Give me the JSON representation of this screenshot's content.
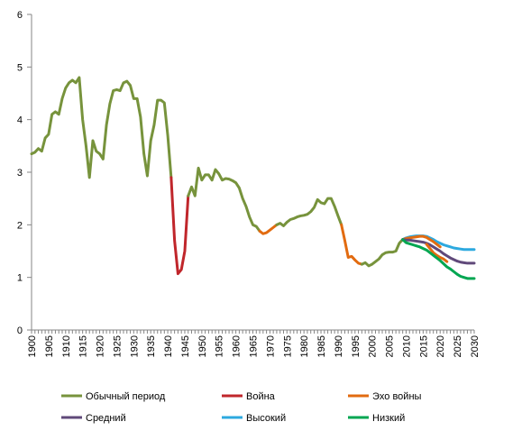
{
  "chart_data": {
    "type": "line",
    "title": "",
    "xlabel": "",
    "ylabel": "",
    "xlim": [
      1900,
      2030
    ],
    "ylim": [
      0,
      6
    ],
    "grid": false,
    "legend_position": "bottom",
    "y_ticks": [
      0,
      1,
      2,
      3,
      4,
      5,
      6
    ],
    "x_ticks": [
      1900,
      1905,
      1910,
      1915,
      1920,
      1925,
      1930,
      1935,
      1940,
      1945,
      1950,
      1955,
      1960,
      1965,
      1970,
      1975,
      1980,
      1985,
      1990,
      1995,
      2000,
      2005,
      2010,
      2015,
      2020,
      2025,
      2030
    ],
    "series": [
      {
        "name": "Обычный период",
        "color": "#77933c",
        "points": [
          [
            1900,
            3.35
          ],
          [
            1901,
            3.38
          ],
          [
            1902,
            3.45
          ],
          [
            1903,
            3.4
          ],
          [
            1904,
            3.65
          ],
          [
            1905,
            3.72
          ],
          [
            1906,
            4.1
          ],
          [
            1907,
            4.15
          ],
          [
            1908,
            4.1
          ],
          [
            1909,
            4.4
          ],
          [
            1910,
            4.6
          ],
          [
            1911,
            4.7
          ],
          [
            1912,
            4.75
          ],
          [
            1913,
            4.7
          ],
          [
            1914,
            4.8
          ],
          [
            1915,
            4.0
          ],
          [
            1916,
            3.5
          ],
          [
            1917,
            2.9
          ],
          [
            1918,
            3.6
          ],
          [
            1919,
            3.4
          ],
          [
            1920,
            3.35
          ],
          [
            1921,
            3.25
          ],
          [
            1922,
            3.9
          ],
          [
            1923,
            4.3
          ],
          [
            1924,
            4.55
          ],
          [
            1925,
            4.57
          ],
          [
            1926,
            4.55
          ],
          [
            1927,
            4.7
          ],
          [
            1928,
            4.73
          ],
          [
            1929,
            4.65
          ],
          [
            1930,
            4.4
          ],
          [
            1931,
            4.4
          ],
          [
            1932,
            4.05
          ],
          [
            1933,
            3.35
          ],
          [
            1934,
            2.93
          ],
          [
            1935,
            3.6
          ],
          [
            1936,
            3.9
          ],
          [
            1937,
            4.37
          ],
          [
            1938,
            4.37
          ],
          [
            1939,
            4.32
          ],
          [
            1940,
            3.7
          ],
          [
            1941,
            2.9
          ]
        ]
      },
      {
        "name": "Война",
        "color": "#c0262b",
        "points": [
          [
            1941,
            2.9
          ],
          [
            1942,
            1.7
          ],
          [
            1943,
            1.07
          ],
          [
            1944,
            1.15
          ],
          [
            1945,
            1.5
          ],
          [
            1946,
            2.55
          ]
        ]
      },
      {
        "name": "Обычный период",
        "color": "#77933c",
        "points": [
          [
            1946,
            2.55
          ],
          [
            1947,
            2.72
          ],
          [
            1948,
            2.55
          ],
          [
            1949,
            3.08
          ],
          [
            1950,
            2.85
          ],
          [
            1951,
            2.95
          ],
          [
            1952,
            2.95
          ],
          [
            1953,
            2.85
          ],
          [
            1954,
            3.05
          ],
          [
            1955,
            2.97
          ],
          [
            1956,
            2.85
          ],
          [
            1957,
            2.88
          ],
          [
            1958,
            2.87
          ],
          [
            1959,
            2.84
          ],
          [
            1960,
            2.8
          ],
          [
            1961,
            2.7
          ],
          [
            1962,
            2.5
          ],
          [
            1963,
            2.35
          ],
          [
            1964,
            2.15
          ],
          [
            1965,
            2.0
          ],
          [
            1966,
            1.97
          ],
          [
            1967,
            1.88
          ]
        ]
      },
      {
        "name": "Эхо войны",
        "color": "#e26b10",
        "points": [
          [
            1967,
            1.88
          ],
          [
            1968,
            1.83
          ],
          [
            1969,
            1.85
          ],
          [
            1970,
            1.9
          ],
          [
            1971,
            1.95
          ],
          [
            1972,
            2.0
          ]
        ]
      },
      {
        "name": "Обычный период",
        "color": "#77933c",
        "points": [
          [
            1972,
            2.0
          ],
          [
            1973,
            2.03
          ],
          [
            1974,
            1.98
          ],
          [
            1975,
            2.05
          ],
          [
            1976,
            2.1
          ],
          [
            1977,
            2.12
          ],
          [
            1978,
            2.15
          ],
          [
            1979,
            2.17
          ],
          [
            1980,
            2.18
          ],
          [
            1981,
            2.2
          ],
          [
            1982,
            2.25
          ],
          [
            1983,
            2.33
          ],
          [
            1984,
            2.48
          ],
          [
            1985,
            2.42
          ],
          [
            1986,
            2.4
          ],
          [
            1987,
            2.5
          ],
          [
            1988,
            2.5
          ],
          [
            1989,
            2.35
          ],
          [
            1990,
            2.17
          ],
          [
            1991,
            2.0
          ]
        ]
      },
      {
        "name": "Эхо войны",
        "color": "#e26b10",
        "points": [
          [
            1991,
            2.0
          ],
          [
            1992,
            1.7
          ],
          [
            1993,
            1.38
          ],
          [
            1994,
            1.4
          ],
          [
            1995,
            1.33
          ],
          [
            1996,
            1.27
          ],
          [
            1997,
            1.25
          ]
        ]
      },
      {
        "name": "Обычный период",
        "color": "#77933c",
        "points": [
          [
            1997,
            1.25
          ],
          [
            1998,
            1.28
          ],
          [
            1999,
            1.22
          ],
          [
            2000,
            1.25
          ],
          [
            2001,
            1.3
          ],
          [
            2002,
            1.35
          ],
          [
            2003,
            1.43
          ],
          [
            2004,
            1.47
          ],
          [
            2005,
            1.48
          ],
          [
            2006,
            1.48
          ],
          [
            2007,
            1.5
          ],
          [
            2008,
            1.65
          ],
          [
            2009,
            1.72
          ]
        ]
      },
      {
        "name": "Высокий",
        "color": "#2da9df",
        "points": [
          [
            2009,
            1.72
          ],
          [
            2010,
            1.75
          ],
          [
            2011,
            1.77
          ],
          [
            2012,
            1.78
          ],
          [
            2013,
            1.79
          ],
          [
            2014,
            1.79
          ],
          [
            2015,
            1.79
          ],
          [
            2016,
            1.78
          ],
          [
            2017,
            1.75
          ],
          [
            2018,
            1.72
          ],
          [
            2019,
            1.68
          ],
          [
            2020,
            1.65
          ],
          [
            2021,
            1.62
          ],
          [
            2022,
            1.6
          ],
          [
            2023,
            1.58
          ],
          [
            2024,
            1.56
          ],
          [
            2025,
            1.55
          ],
          [
            2026,
            1.54
          ],
          [
            2027,
            1.53
          ],
          [
            2028,
            1.53
          ],
          [
            2029,
            1.53
          ],
          [
            2030,
            1.53
          ]
        ]
      },
      {
        "name": "Эхо войны",
        "color": "#e26b10",
        "points": [
          [
            2009,
            1.72
          ],
          [
            2010,
            1.74
          ],
          [
            2011,
            1.75
          ],
          [
            2012,
            1.76
          ],
          [
            2013,
            1.77
          ],
          [
            2014,
            1.78
          ],
          [
            2015,
            1.78
          ],
          [
            2016,
            1.76
          ],
          [
            2017,
            1.72
          ],
          [
            2018,
            1.68
          ],
          [
            2019,
            1.63
          ],
          [
            2020,
            1.58
          ]
        ]
      },
      {
        "name": "Средний",
        "color": "#60497a",
        "points": [
          [
            2009,
            1.72
          ],
          [
            2010,
            1.71
          ],
          [
            2011,
            1.71
          ],
          [
            2012,
            1.7
          ],
          [
            2013,
            1.69
          ],
          [
            2014,
            1.68
          ],
          [
            2015,
            1.67
          ],
          [
            2016,
            1.65
          ],
          [
            2017,
            1.62
          ],
          [
            2018,
            1.58
          ],
          [
            2019,
            1.54
          ],
          [
            2020,
            1.5
          ],
          [
            2021,
            1.45
          ],
          [
            2022,
            1.41
          ],
          [
            2023,
            1.37
          ],
          [
            2024,
            1.34
          ],
          [
            2025,
            1.31
          ],
          [
            2026,
            1.29
          ],
          [
            2027,
            1.28
          ],
          [
            2028,
            1.27
          ],
          [
            2029,
            1.27
          ],
          [
            2030,
            1.27
          ]
        ]
      },
      {
        "name": "Эхо войны",
        "color": "#e26b10",
        "points": [
          [
            2016,
            1.63
          ],
          [
            2017,
            1.55
          ],
          [
            2018,
            1.47
          ],
          [
            2019,
            1.42
          ],
          [
            2020,
            1.38
          ],
          [
            2021,
            1.35
          ],
          [
            2022,
            1.3
          ]
        ]
      },
      {
        "name": "Низкий",
        "color": "#00a651",
        "points": [
          [
            2009,
            1.72
          ],
          [
            2010,
            1.66
          ],
          [
            2011,
            1.64
          ],
          [
            2012,
            1.62
          ],
          [
            2013,
            1.6
          ],
          [
            2014,
            1.58
          ],
          [
            2015,
            1.55
          ],
          [
            2016,
            1.52
          ],
          [
            2017,
            1.47
          ],
          [
            2018,
            1.42
          ],
          [
            2019,
            1.37
          ],
          [
            2020,
            1.32
          ],
          [
            2021,
            1.26
          ],
          [
            2022,
            1.2
          ],
          [
            2023,
            1.16
          ],
          [
            2024,
            1.11
          ],
          [
            2025,
            1.06
          ],
          [
            2026,
            1.02
          ],
          [
            2027,
            1.0
          ],
          [
            2028,
            0.98
          ],
          [
            2029,
            0.98
          ],
          [
            2030,
            0.98
          ]
        ]
      }
    ],
    "legend": [
      {
        "label": "Обычный период",
        "color": "#77933c"
      },
      {
        "label": "Война",
        "color": "#c0262b"
      },
      {
        "label": "Эхо войны",
        "color": "#e26b10"
      },
      {
        "label": "Средний",
        "color": "#60497a"
      },
      {
        "label": "Высокий",
        "color": "#2da9df"
      },
      {
        "label": "Низкий",
        "color": "#00a651"
      }
    ]
  }
}
